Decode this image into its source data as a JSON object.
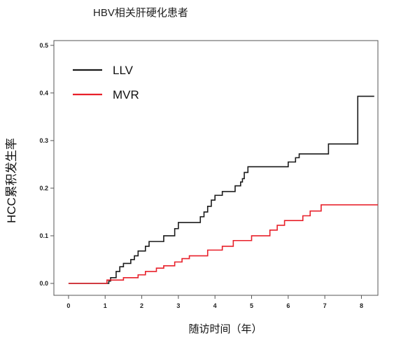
{
  "chart_data": {
    "type": "line",
    "title": "HBV相关肝硬化患者",
    "xlabel": "随访时间（年）",
    "ylabel": "HCC累积发生率",
    "xlim": [
      -0.4,
      8.45
    ],
    "ylim": [
      -0.025,
      0.51
    ],
    "xticks": [
      "0",
      "1",
      "2",
      "3",
      "4",
      "5",
      "6",
      "7",
      "8"
    ],
    "yticks": [
      "0.0",
      "0.1",
      "0.2",
      "0.3",
      "0.4",
      "0.5"
    ],
    "legend": {
      "position": "top-left"
    },
    "series": [
      {
        "name": "LLV",
        "color": "#1a1a1a",
        "step_points": [
          [
            0,
            0
          ],
          [
            1.1,
            0
          ],
          [
            1.1,
            0.005
          ],
          [
            1.15,
            0.012
          ],
          [
            1.3,
            0.025
          ],
          [
            1.4,
            0.035
          ],
          [
            1.5,
            0.042
          ],
          [
            1.7,
            0.05
          ],
          [
            1.8,
            0.058
          ],
          [
            1.9,
            0.068
          ],
          [
            2.1,
            0.078
          ],
          [
            2.2,
            0.088
          ],
          [
            2.6,
            0.1
          ],
          [
            2.9,
            0.115
          ],
          [
            3.0,
            0.128
          ],
          [
            3.6,
            0.14
          ],
          [
            3.7,
            0.15
          ],
          [
            3.8,
            0.162
          ],
          [
            3.9,
            0.175
          ],
          [
            4.0,
            0.185
          ],
          [
            4.2,
            0.193
          ],
          [
            4.55,
            0.205
          ],
          [
            4.7,
            0.213
          ],
          [
            4.75,
            0.22
          ],
          [
            4.8,
            0.233
          ],
          [
            4.9,
            0.245
          ],
          [
            6.0,
            0.255
          ],
          [
            6.2,
            0.264
          ],
          [
            6.3,
            0.272
          ],
          [
            7.1,
            0.293
          ],
          [
            7.9,
            0.393
          ],
          [
            8.35,
            0.393
          ]
        ]
      },
      {
        "name": "MVR",
        "color": "#e8202a",
        "step_points": [
          [
            0,
            0
          ],
          [
            1.05,
            0
          ],
          [
            1.05,
            0.007
          ],
          [
            1.5,
            0.012
          ],
          [
            1.9,
            0.018
          ],
          [
            2.1,
            0.025
          ],
          [
            2.4,
            0.032
          ],
          [
            2.6,
            0.037
          ],
          [
            2.9,
            0.045
          ],
          [
            3.1,
            0.052
          ],
          [
            3.3,
            0.058
          ],
          [
            3.8,
            0.07
          ],
          [
            4.2,
            0.078
          ],
          [
            4.5,
            0.09
          ],
          [
            5.0,
            0.1
          ],
          [
            5.5,
            0.112
          ],
          [
            5.7,
            0.122
          ],
          [
            5.9,
            0.132
          ],
          [
            6.4,
            0.142
          ],
          [
            6.6,
            0.152
          ],
          [
            6.9,
            0.165
          ],
          [
            8.45,
            0.165
          ]
        ]
      }
    ]
  }
}
